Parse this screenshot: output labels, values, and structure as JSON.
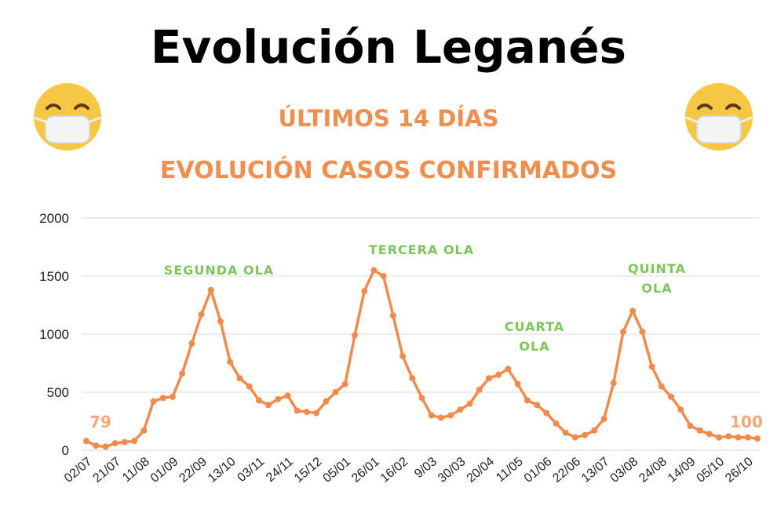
{
  "title": "Evolución Leganés",
  "subtitle1": "ÚLTIMOS 14 DÍAS",
  "subtitle2": "EVOLUCIÓN CASOS CONFIRMADOS",
  "icons": {
    "left": "face-with-medical-mask-icon",
    "right": "face-with-medical-mask-icon"
  },
  "colors": {
    "line": "#ef8c4c",
    "annotation": "#7dc65b",
    "subtitle": "#f08e4e",
    "end_label": "#f3a877",
    "grid": "#d9d9d9"
  },
  "chart_data": {
    "type": "line",
    "ylim": [
      0,
      2000
    ],
    "yticks": [
      0,
      500,
      1000,
      1500,
      2000
    ],
    "grid": true,
    "xtick_labels": [
      "02/07",
      "21/07",
      "11/08",
      "01/09",
      "22/09",
      "13/10",
      "03/11",
      "24/11",
      "15/12",
      "05/01",
      "26/01",
      "16/02",
      "9/03",
      "30/03",
      "20/04",
      "11/05",
      "01/06",
      "22/06",
      "13/07",
      "03/08",
      "24/08",
      "14/09",
      "05/10",
      "26/10"
    ],
    "values": [
      79,
      40,
      30,
      60,
      70,
      80,
      170,
      420,
      450,
      460,
      660,
      920,
      1170,
      1380,
      1110,
      760,
      620,
      550,
      430,
      390,
      440,
      470,
      340,
      330,
      320,
      420,
      500,
      570,
      990,
      1370,
      1550,
      1500,
      1160,
      810,
      620,
      450,
      300,
      280,
      300,
      350,
      400,
      520,
      620,
      650,
      700,
      570,
      430,
      390,
      320,
      230,
      150,
      110,
      130,
      170,
      270,
      580,
      1020,
      1200,
      1020,
      720,
      550,
      460,
      350,
      210,
      170,
      140,
      110,
      120,
      110,
      110,
      100
    ],
    "annotations": [
      {
        "lines": [
          "SEGUNDA OLA"
        ]
      },
      {
        "lines": [
          "TERCERA OLA"
        ]
      },
      {
        "lines": [
          "CUARTA",
          "OLA"
        ]
      },
      {
        "lines": [
          "QUINTA",
          "OLA"
        ]
      }
    ],
    "start_label": "79",
    "end_label": "100"
  }
}
